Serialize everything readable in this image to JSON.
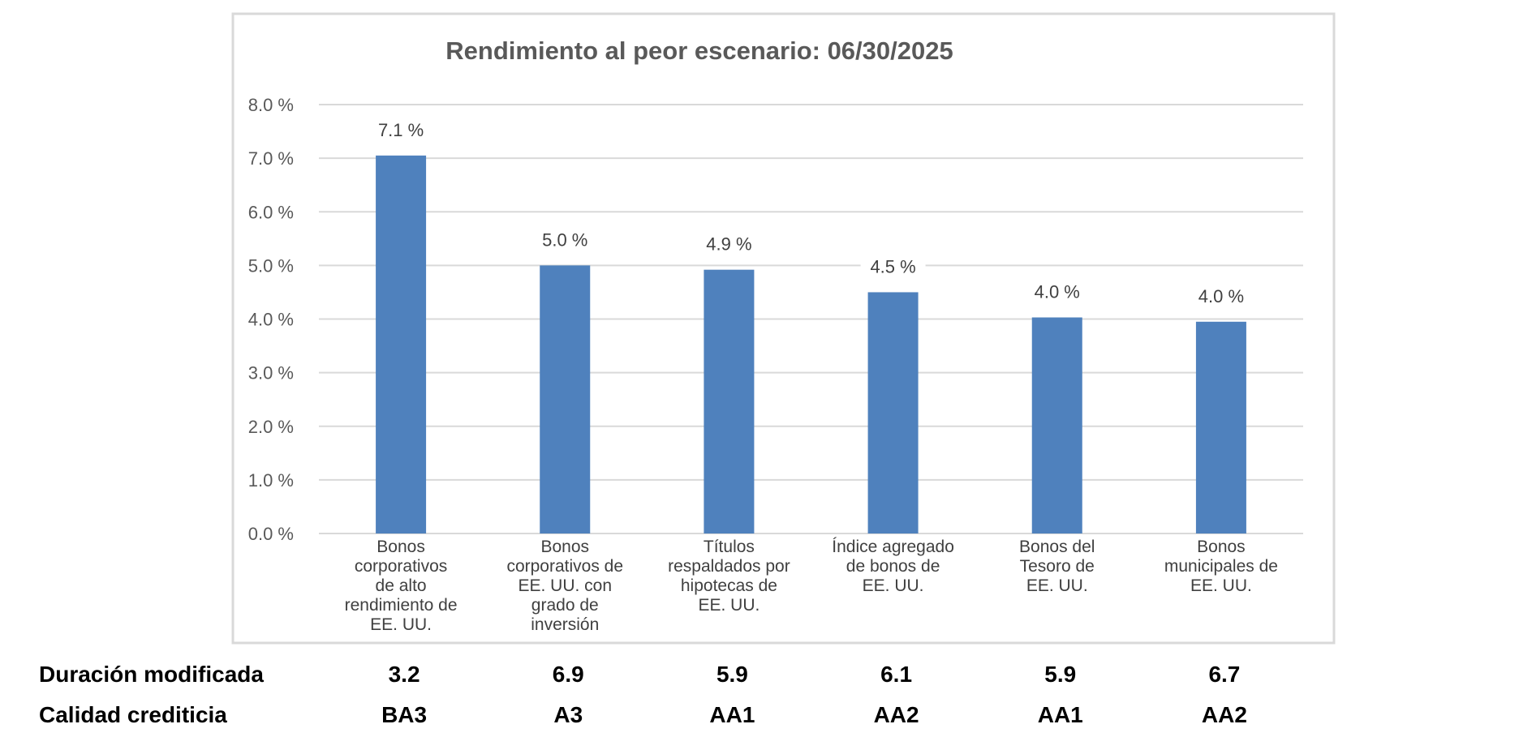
{
  "chart_data": {
    "type": "bar",
    "title": "Rendimiento al peor escenario: 06/30/2025",
    "categories": [
      [
        "Bonos",
        "corporativos",
        "de alto",
        "rendimiento de",
        "EE. UU."
      ],
      [
        "Bonos",
        "corporativos de",
        "EE. UU. con",
        "grado de",
        "inversión"
      ],
      [
        "Títulos",
        "respaldados por",
        "hipotecas de",
        "EE.  UU."
      ],
      [
        "Índice agregado",
        "de bonos de",
        "EE.  UU."
      ],
      [
        "Bonos del",
        "Tesoro de",
        "EE. UU."
      ],
      [
        "Bonos",
        "municipales de",
        "EE.  UU."
      ]
    ],
    "values": [
      7.05,
      5.0,
      4.92,
      4.5,
      4.03,
      3.95
    ],
    "data_labels": [
      "7.1 %",
      "5.0 %",
      "4.9 %",
      "4.5 %",
      "4.0 %",
      "4.0 %"
    ],
    "ylim": [
      0,
      8
    ],
    "yticks": [
      0,
      1,
      2,
      3,
      4,
      5,
      6,
      7,
      8
    ],
    "ytick_labels": [
      "0.0 %",
      "1.0 %",
      "2.0 %",
      "3.0 %",
      "4.0 %",
      "5.0 %",
      "6.0 %",
      "7.0 %",
      "8.0 %"
    ],
    "grid": true,
    "bar_color": "#4f81bd",
    "xlabel": "",
    "ylabel": ""
  },
  "table": {
    "rows": [
      {
        "header": "Duración modificada",
        "values": [
          "3.2",
          "6.9",
          "5.9",
          "6.1",
          "5.9",
          "6.7"
        ]
      },
      {
        "header": "Calidad crediticia",
        "values": [
          "BA3",
          "A3",
          "AA1",
          "AA2",
          "AA1",
          "AA2"
        ]
      }
    ]
  }
}
